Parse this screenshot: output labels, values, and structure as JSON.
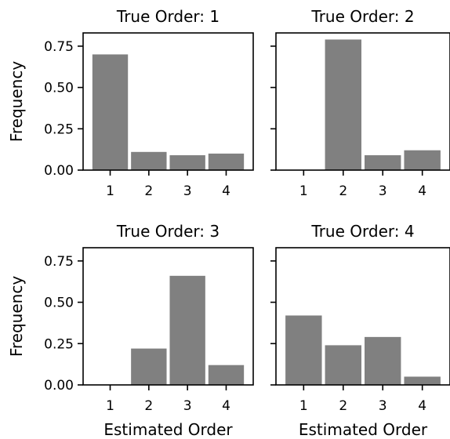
{
  "chart_data": {
    "type": "bar",
    "layout": "2x2 grid, shared y-axis per row",
    "bar_color": "#808080",
    "ylim": [
      0,
      0.83
    ],
    "yticks": [
      "0.00",
      "0.25",
      "0.50",
      "0.75"
    ],
    "categories": [
      "1",
      "2",
      "3",
      "4"
    ],
    "xlabel": "Estimated Order",
    "ylabel": "Frequency",
    "grid": false,
    "panels": [
      {
        "title": "True Order: 1",
        "values": [
          0.7,
          0.11,
          0.09,
          0.1
        ]
      },
      {
        "title": "True Order: 2",
        "values": [
          0.0,
          0.79,
          0.09,
          0.12
        ]
      },
      {
        "title": "True Order: 3",
        "values": [
          0.0,
          0.22,
          0.66,
          0.12
        ]
      },
      {
        "title": "True Order: 4",
        "values": [
          0.42,
          0.24,
          0.29,
          0.05
        ]
      }
    ]
  }
}
